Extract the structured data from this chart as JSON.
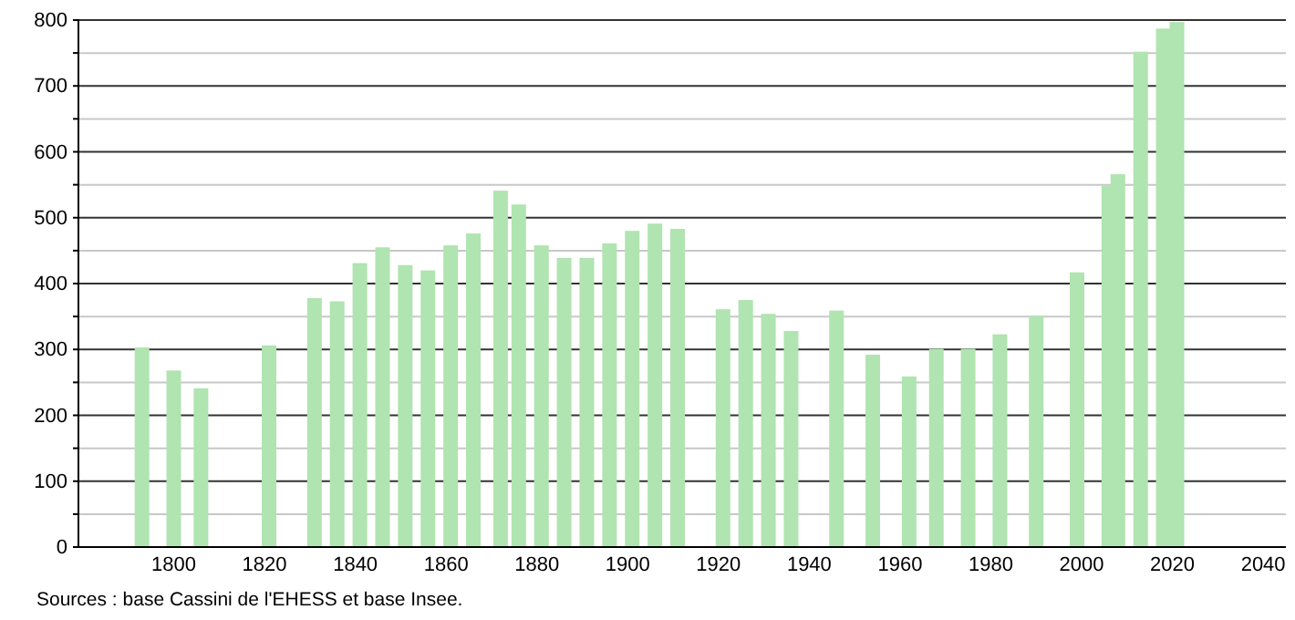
{
  "chart_data": {
    "type": "bar",
    "color": "#b0e4b0",
    "x": [
      1793,
      1800,
      1806,
      1821,
      1831,
      1836,
      1841,
      1846,
      1851,
      1856,
      1861,
      1866,
      1872,
      1876,
      1881,
      1886,
      1891,
      1896,
      1901,
      1906,
      1911,
      1921,
      1926,
      1931,
      1936,
      1946,
      1954,
      1962,
      1968,
      1975,
      1982,
      1990,
      1999,
      2006,
      2008,
      2013,
      2018,
      2021
    ],
    "values": [
      303,
      268,
      241,
      306,
      378,
      373,
      431,
      455,
      428,
      420,
      458,
      476,
      541,
      520,
      458,
      439,
      439,
      461,
      480,
      491,
      483,
      361,
      375,
      354,
      328,
      359,
      292,
      259,
      301,
      301,
      323,
      351,
      417,
      549,
      566,
      752,
      787,
      797
    ],
    "xlim": [
      1779,
      2045
    ],
    "xticks": [
      1800,
      1820,
      1840,
      1860,
      1880,
      1900,
      1920,
      1940,
      1960,
      1980,
      2000,
      2020,
      2040
    ],
    "ylim": [
      0,
      800
    ],
    "yticks": [
      0,
      {
        "value": 50,
        "label": null
      },
      100,
      {
        "value": 150,
        "label": null
      },
      200,
      {
        "value": 250,
        "label": null
      },
      300,
      {
        "value": 350,
        "label": null
      },
      400,
      {
        "value": 450,
        "label": null
      },
      500,
      {
        "value": 550,
        "label": null
      },
      600,
      {
        "value": 650,
        "label": null
      },
      700,
      {
        "value": 750,
        "label": null
      },
      800
    ],
    "grid": true,
    "annotations": [
      "Sources : base Cassini de l'EHESS et base Insee."
    ]
  }
}
